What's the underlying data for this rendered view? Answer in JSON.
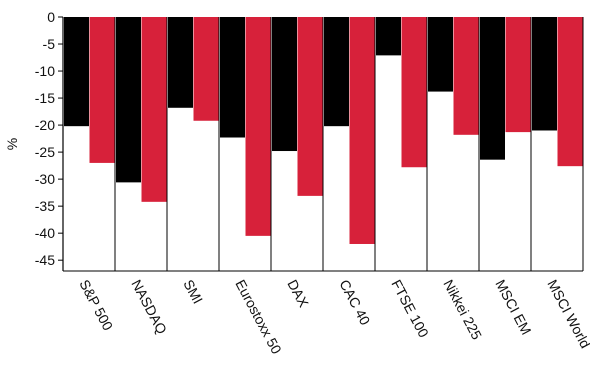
{
  "chart_data": {
    "type": "bar",
    "title": "",
    "xlabel": "",
    "ylabel": "%",
    "ylim": [
      -47,
      0
    ],
    "yticks": [
      0,
      -5,
      -10,
      -15,
      -20,
      -25,
      -30,
      -35,
      -40,
      -45
    ],
    "ytick_labels": [
      "0",
      "-5",
      "-10",
      "-15",
      "-20",
      "-25",
      "-30",
      "-35",
      "-40",
      "-45"
    ],
    "categories": [
      "S&P 500",
      "NASDAQ",
      "SMI",
      "Eurostoxx 50",
      "DAX",
      "CAC 40",
      "FTSE 100",
      "Nikkei 225",
      "MSCI EM",
      "MSCI World"
    ],
    "series": [
      {
        "color": "#000000",
        "values": [
          -20.2,
          -30.6,
          -16.8,
          -22.3,
          -24.8,
          -20.2,
          -7.1,
          -13.8,
          -26.4,
          -21.0
        ]
      },
      {
        "color": "#d7213a",
        "values": [
          -27.0,
          -34.2,
          -19.2,
          -40.5,
          -33.1,
          -42.0,
          -27.8,
          -21.8,
          -21.3,
          -27.6
        ]
      }
    ],
    "grid": false,
    "legend": "none"
  }
}
